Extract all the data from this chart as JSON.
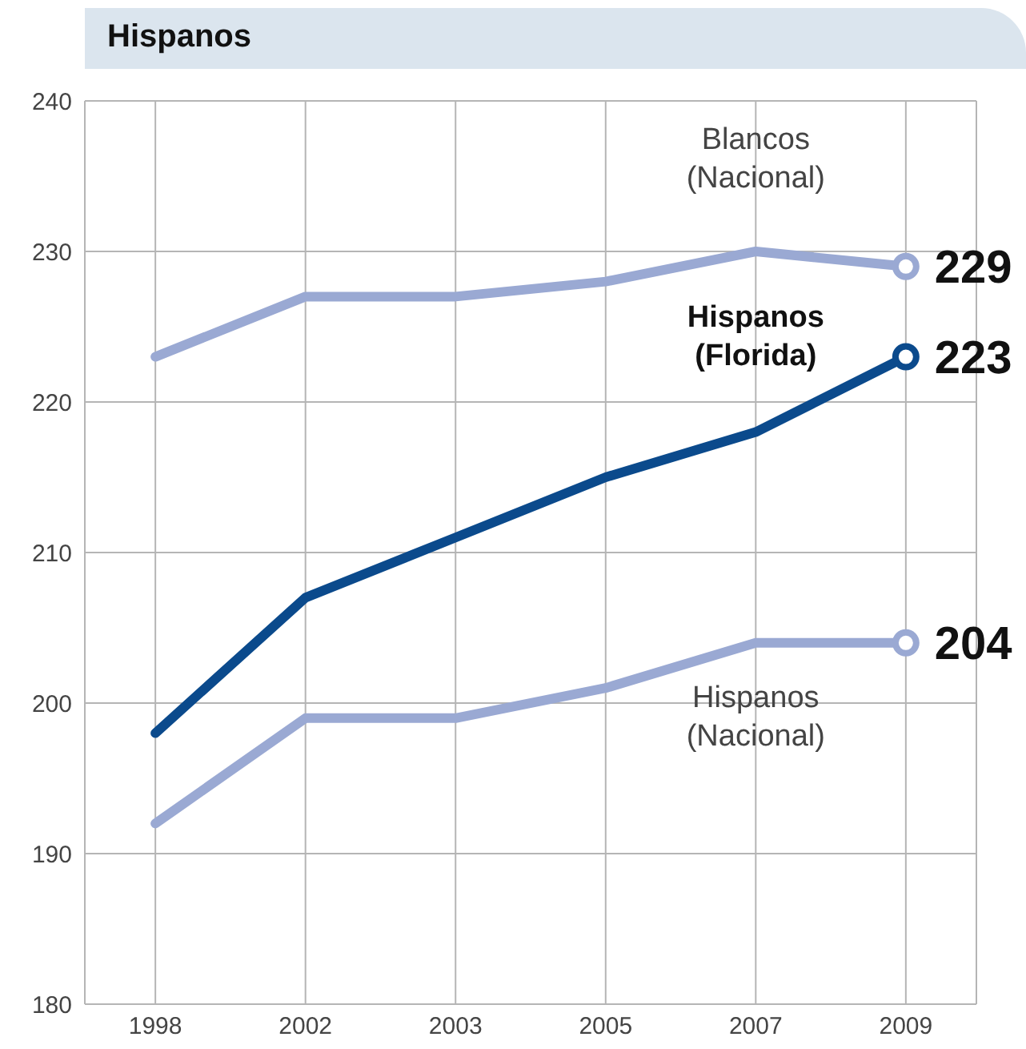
{
  "chart_data": {
    "type": "line",
    "title": "Hispanos",
    "categories": [
      "1998",
      "2002",
      "2003",
      "2005",
      "2007",
      "2009"
    ],
    "series": [
      {
        "name": "Blancos (Nacional)",
        "color": "#9aa9d3",
        "values": [
          223,
          227,
          227,
          228,
          230,
          229
        ],
        "value_labels": [
          null,
          null,
          null,
          null,
          null,
          "229"
        ]
      },
      {
        "name": "Hispanos (Florida)",
        "color": "#0b4a8c",
        "values": [
          198,
          207,
          211,
          215,
          218,
          223
        ],
        "value_labels": [
          null,
          null,
          null,
          null,
          null,
          "223"
        ]
      },
      {
        "name": "Hispanos (Nacional)",
        "color": "#9aa9d3",
        "values": [
          192,
          199,
          199,
          201,
          204,
          204
        ],
        "value_labels": [
          null,
          null,
          null,
          null,
          null,
          "204"
        ]
      }
    ],
    "ylim": [
      180,
      240
    ],
    "yticks": [
      180,
      190,
      200,
      210,
      220,
      230,
      240
    ],
    "grid": true,
    "line_style": "solid"
  }
}
